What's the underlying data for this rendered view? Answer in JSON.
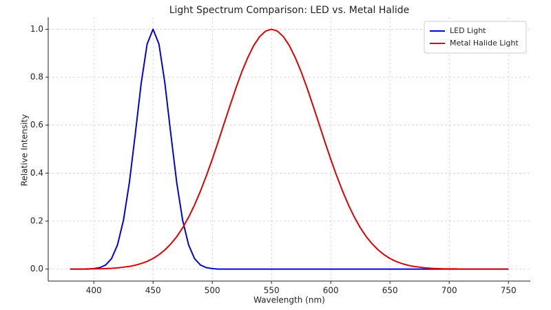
{
  "chart_data": {
    "type": "line",
    "title": "Light Spectrum Comparison: LED vs. Metal Halide",
    "x_label": "Wavelength (nm)",
    "y_label": "Relative Intensity",
    "x": [
      380,
      385,
      390,
      395,
      400,
      405,
      410,
      415,
      420,
      425,
      430,
      435,
      440,
      445,
      450,
      455,
      460,
      465,
      470,
      475,
      480,
      485,
      490,
      495,
      500,
      505,
      510,
      515,
      520,
      525,
      530,
      535,
      540,
      545,
      550,
      555,
      560,
      565,
      570,
      575,
      580,
      585,
      590,
      595,
      600,
      605,
      610,
      615,
      620,
      625,
      630,
      635,
      640,
      645,
      650,
      655,
      660,
      665,
      670,
      675,
      680,
      685,
      690,
      695,
      700,
      705,
      710,
      715,
      720,
      725,
      730,
      735,
      740,
      745,
      750
    ],
    "series": [
      {
        "name": "LED Light",
        "color": "#0000dd",
        "values": [
          0,
          0,
          0,
          0,
          0.002,
          0.006,
          0.017,
          0.044,
          0.101,
          0.203,
          0.36,
          0.563,
          0.775,
          0.938,
          1,
          0.938,
          0.775,
          0.563,
          0.36,
          0.203,
          0.101,
          0.044,
          0.017,
          0.006,
          0.002,
          0,
          0,
          0,
          0,
          0,
          0,
          0,
          0,
          0,
          0,
          0,
          0,
          0,
          0,
          0,
          0,
          0,
          0,
          0,
          0,
          0,
          0,
          0,
          0,
          0,
          0,
          0,
          0,
          0,
          0,
          0,
          0,
          0,
          0,
          0,
          0,
          0,
          0,
          0,
          0,
          0,
          0,
          0,
          0,
          0,
          0,
          0,
          0,
          0,
          0
        ]
      },
      {
        "name": "Metal Halide Light",
        "color": "#dd0000",
        "values": [
          0,
          0,
          0,
          0.001,
          0.001,
          0.001,
          0.002,
          0.003,
          0.005,
          0.008,
          0.011,
          0.016,
          0.023,
          0.032,
          0.044,
          0.06,
          0.08,
          0.105,
          0.135,
          0.172,
          0.216,
          0.267,
          0.325,
          0.389,
          0.458,
          0.531,
          0.607,
          0.682,
          0.755,
          0.823,
          0.882,
          0.932,
          0.969,
          0.992,
          1,
          0.992,
          0.969,
          0.932,
          0.882,
          0.823,
          0.755,
          0.682,
          0.607,
          0.531,
          0.458,
          0.389,
          0.325,
          0.267,
          0.216,
          0.172,
          0.135,
          0.105,
          0.08,
          0.06,
          0.044,
          0.032,
          0.023,
          0.016,
          0.011,
          0.008,
          0.005,
          0.003,
          0.002,
          0.001,
          0.001,
          0.001,
          0,
          0,
          0,
          0,
          0,
          0,
          0,
          0,
          0
        ]
      }
    ],
    "xlim": [
      361.5,
      768.5
    ],
    "ylim": [
      -0.05,
      1.05
    ],
    "xticks": [
      400,
      450,
      500,
      550,
      600,
      650,
      700,
      750
    ],
    "yticks": [
      {
        "value": 0,
        "label": "0.0"
      },
      0.2,
      0.4,
      0.6,
      0.8,
      {
        "value": 1,
        "label": "1.0"
      }
    ],
    "grid": true,
    "legend": "upper right"
  }
}
